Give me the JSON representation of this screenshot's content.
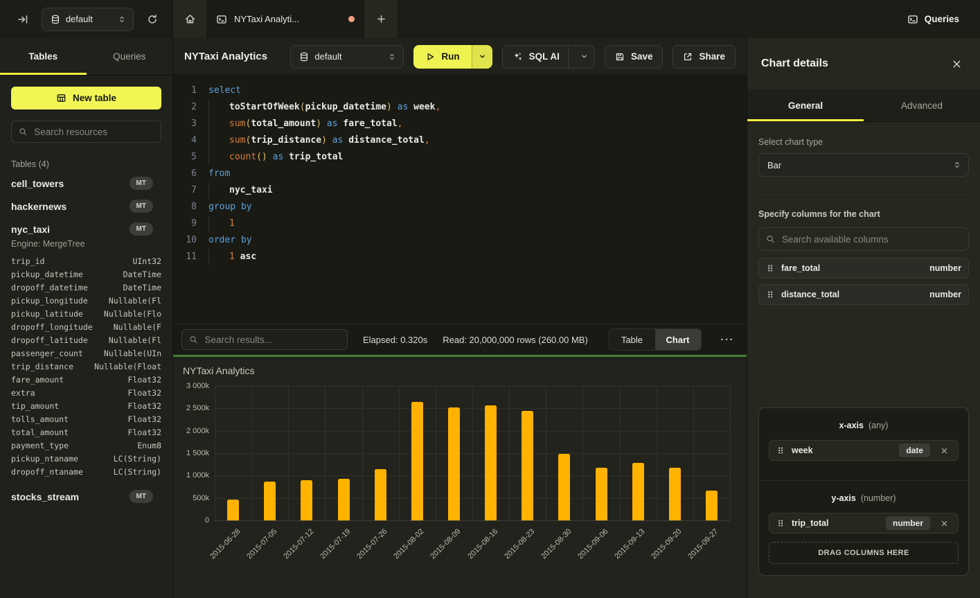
{
  "topbar": {
    "database": "default",
    "tab_title": "NYTaxi Analyti...",
    "queries_label": "Queries"
  },
  "sidebar": {
    "tab_tables": "Tables",
    "tab_queries": "Queries",
    "new_table_label": "New table",
    "search_placeholder": "Search resources",
    "section_title": "Tables (4)",
    "tables": [
      {
        "name": "cell_towers",
        "badge": "MT"
      },
      {
        "name": "hackernews",
        "badge": "MT"
      },
      {
        "name": "nyc_taxi",
        "badge": "MT",
        "engine": "Engine: MergeTree",
        "columns": [
          [
            "trip_id",
            "UInt32"
          ],
          [
            "pickup_datetime",
            "DateTime"
          ],
          [
            "dropoff_datetime",
            "DateTime"
          ],
          [
            "pickup_longitude",
            "Nullable(Fl"
          ],
          [
            "pickup_latitude",
            "Nullable(Flo"
          ],
          [
            "dropoff_longitude",
            "Nullable(F"
          ],
          [
            "dropoff_latitude",
            "Nullable(Fl"
          ],
          [
            "passenger_count",
            "Nullable(UIn"
          ],
          [
            "trip_distance",
            "Nullable(Float"
          ],
          [
            "fare_amount",
            "Float32"
          ],
          [
            "extra",
            "Float32"
          ],
          [
            "tip_amount",
            "Float32"
          ],
          [
            "tolls_amount",
            "Float32"
          ],
          [
            "total_amount",
            "Float32"
          ],
          [
            "payment_type",
            "Enum8"
          ],
          [
            "pickup_ntaname",
            "LC(String)"
          ],
          [
            "dropoff_ntaname",
            "LC(String)"
          ]
        ]
      },
      {
        "name": "stocks_stream",
        "badge": "MT"
      }
    ]
  },
  "editor": {
    "title": "NYTaxi Analytics",
    "toolbar": {
      "database": "default",
      "run_label": "Run",
      "sql_ai_label": "SQL AI",
      "save_label": "Save",
      "share_label": "Share"
    },
    "code_lines": [
      {
        "n": "1",
        "indent": 0,
        "tokens": [
          [
            "kw",
            "select"
          ]
        ]
      },
      {
        "n": "2",
        "indent": 1,
        "tokens": [
          [
            "id",
            "toStartOfWeek"
          ],
          [
            "par",
            "("
          ],
          [
            "id",
            "pickup_datetime"
          ],
          [
            "par",
            ")"
          ],
          [
            "kw",
            " as "
          ],
          [
            "id",
            "week"
          ],
          [
            "pu",
            ","
          ]
        ]
      },
      {
        "n": "3",
        "indent": 1,
        "tokens": [
          [
            "fn",
            "sum"
          ],
          [
            "par",
            "("
          ],
          [
            "id",
            "total_amount"
          ],
          [
            "par",
            ")"
          ],
          [
            "kw",
            " as "
          ],
          [
            "id",
            "fare_total"
          ],
          [
            "pu",
            ","
          ]
        ]
      },
      {
        "n": "4",
        "indent": 1,
        "tokens": [
          [
            "fn",
            "sum"
          ],
          [
            "par",
            "("
          ],
          [
            "id",
            "trip_distance"
          ],
          [
            "par",
            ")"
          ],
          [
            "kw",
            " as "
          ],
          [
            "id",
            "distance_total"
          ],
          [
            "pu",
            ","
          ]
        ]
      },
      {
        "n": "5",
        "indent": 1,
        "tokens": [
          [
            "fn",
            "count"
          ],
          [
            "par",
            "()"
          ],
          [
            "kw",
            " as "
          ],
          [
            "id",
            "trip_total"
          ]
        ]
      },
      {
        "n": "6",
        "indent": 0,
        "tokens": [
          [
            "kw",
            "from"
          ]
        ]
      },
      {
        "n": "7",
        "indent": 1,
        "tokens": [
          [
            "id",
            "nyc_taxi"
          ]
        ]
      },
      {
        "n": "8",
        "indent": 0,
        "tokens": [
          [
            "kw",
            "group by"
          ]
        ]
      },
      {
        "n": "9",
        "indent": 1,
        "tokens": [
          [
            "num",
            "1"
          ]
        ]
      },
      {
        "n": "10",
        "indent": 0,
        "tokens": [
          [
            "kw",
            "order by"
          ]
        ]
      },
      {
        "n": "11",
        "indent": 1,
        "tokens": [
          [
            "num",
            "1"
          ],
          [
            "id",
            " asc"
          ]
        ]
      }
    ]
  },
  "results": {
    "search_placeholder": "Search results...",
    "elapsed": "Elapsed: 0.320s",
    "read": "Read: 20,000,000 rows (260.00 MB)",
    "view_toggle": [
      {
        "label": "Table",
        "active": false
      },
      {
        "label": "Chart",
        "active": true
      }
    ],
    "more_label": "···"
  },
  "chart_data": {
    "type": "bar",
    "title": "NYTaxi Analytics",
    "series_name": "trip_total",
    "categories": [
      "2015-06-28",
      "2015-07-05",
      "2015-07-12",
      "2015-07-19",
      "2015-07-26",
      "2015-08-02",
      "2015-08-09",
      "2015-08-16",
      "2015-08-23",
      "2015-08-30",
      "2015-09-06",
      "2015-09-13",
      "2015-09-20",
      "2015-09-27"
    ],
    "values": [
      470000,
      860000,
      900000,
      930000,
      1150000,
      2640000,
      2520000,
      2570000,
      2450000,
      1480000,
      1170000,
      1280000,
      1180000,
      660000
    ],
    "xlabel": "week",
    "ylabel": "trip_total",
    "ylim": [
      0,
      3000000
    ],
    "y_ticks": [
      "3 000k",
      "2 500k",
      "2 000k",
      "1 500k",
      "1 000k",
      "500k",
      "0"
    ],
    "grid": true,
    "legend": false,
    "bar_color": "#FFB200"
  },
  "chart_panel": {
    "title": "Chart details",
    "tab_general": "General",
    "tab_advanced": "Advanced",
    "chart_type_label": "Select chart type",
    "chart_type_value": "Bar",
    "columns_label": "Specify columns for the chart",
    "search_placeholder": "Search available columns",
    "available_columns": [
      {
        "name": "fare_total",
        "type": "number"
      },
      {
        "name": "distance_total",
        "type": "number"
      }
    ],
    "x_axis": {
      "label": "x-axis",
      "hint": "(any)",
      "chips": [
        {
          "name": "week",
          "type": "date"
        }
      ]
    },
    "y_axis": {
      "label": "y-axis",
      "hint": "(number)",
      "chips": [
        {
          "name": "trip_total",
          "type": "number"
        }
      ]
    },
    "drop_zone_label": "DRAG COLUMNS HERE"
  },
  "colors": {
    "accent_yellow": "#F2F53F",
    "run_yellow": "#EFF352",
    "bar_orange": "#FFB200",
    "divider_green": "#467F36",
    "tab_dot_orange": "#EFA17C"
  }
}
